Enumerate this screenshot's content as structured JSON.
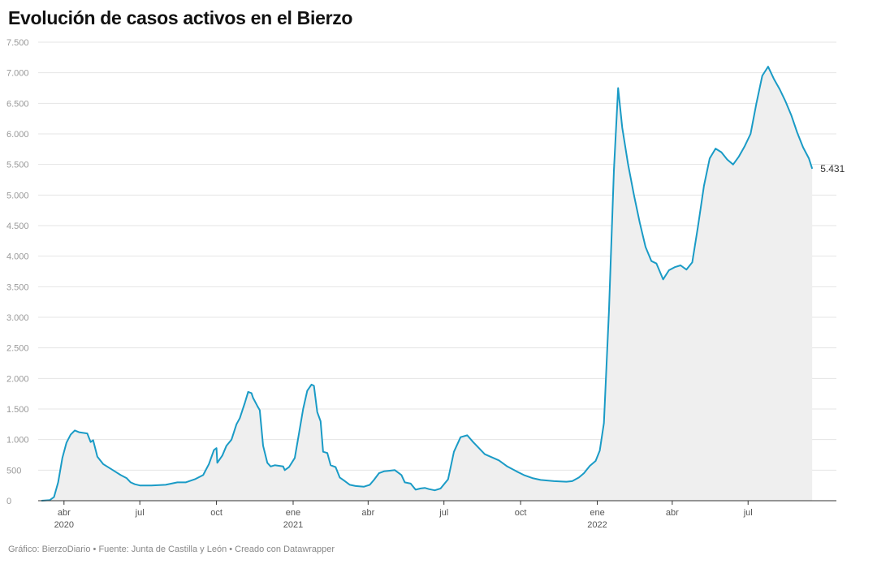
{
  "title": "Evolución de casos activos en el Bierzo",
  "footer": "Gráfico: BierzoDiario • Fuente: Junta de Castilla y León • Creado con Datawrapper",
  "colors": {
    "line": "#1a9bc6",
    "area": "#efefef",
    "grid": "#e4e4e4",
    "axis": "#333333"
  },
  "chart_data": {
    "type": "area",
    "title": "Evolución de casos activos en el Bierzo",
    "xlabel": "",
    "ylabel": "",
    "ylim": [
      0,
      7500
    ],
    "xlim": [
      "2020-03-01",
      "2022-10-15"
    ],
    "grid": true,
    "y_ticks": [
      {
        "value": 0,
        "label": "0"
      },
      {
        "value": 500,
        "label": "500"
      },
      {
        "value": 1000,
        "label": "1.000"
      },
      {
        "value": 1500,
        "label": "1.500"
      },
      {
        "value": 2000,
        "label": "2.000"
      },
      {
        "value": 2500,
        "label": "2.500"
      },
      {
        "value": 3000,
        "label": "3.000"
      },
      {
        "value": 3500,
        "label": "3.500"
      },
      {
        "value": 4000,
        "label": "4.000"
      },
      {
        "value": 4500,
        "label": "4.500"
      },
      {
        "value": 5000,
        "label": "5.000"
      },
      {
        "value": 5500,
        "label": "5.500"
      },
      {
        "value": 6000,
        "label": "6.000"
      },
      {
        "value": 6500,
        "label": "6.500"
      },
      {
        "value": 7000,
        "label": "7.000"
      },
      {
        "value": 7500,
        "label": "7.500"
      }
    ],
    "x_ticks": [
      {
        "date": "2020-04-01",
        "label": "abr",
        "year": "2020"
      },
      {
        "date": "2020-07-01",
        "label": "jul",
        "year": ""
      },
      {
        "date": "2020-10-01",
        "label": "oct",
        "year": ""
      },
      {
        "date": "2021-01-01",
        "label": "ene",
        "year": "2021"
      },
      {
        "date": "2021-04-01",
        "label": "abr",
        "year": ""
      },
      {
        "date": "2021-07-01",
        "label": "jul",
        "year": ""
      },
      {
        "date": "2021-10-01",
        "label": "oct",
        "year": ""
      },
      {
        "date": "2022-01-01",
        "label": "ene",
        "year": "2022"
      },
      {
        "date": "2022-04-01",
        "label": "abr",
        "year": ""
      },
      {
        "date": "2022-07-01",
        "label": "jul",
        "year": ""
      }
    ],
    "end_label": "5.431",
    "series": [
      {
        "points": [
          [
            "2020-03-05",
            0
          ],
          [
            "2020-03-15",
            10
          ],
          [
            "2020-03-20",
            60
          ],
          [
            "2020-03-25",
            300
          ],
          [
            "2020-03-30",
            700
          ],
          [
            "2020-04-04",
            950
          ],
          [
            "2020-04-09",
            1080
          ],
          [
            "2020-04-14",
            1150
          ],
          [
            "2020-04-19",
            1120
          ],
          [
            "2020-04-24",
            1110
          ],
          [
            "2020-04-29",
            1100
          ],
          [
            "2020-05-03",
            960
          ],
          [
            "2020-05-06",
            990
          ],
          [
            "2020-05-11",
            720
          ],
          [
            "2020-05-18",
            600
          ],
          [
            "2020-05-25",
            540
          ],
          [
            "2020-06-01",
            480
          ],
          [
            "2020-06-08",
            420
          ],
          [
            "2020-06-15",
            370
          ],
          [
            "2020-06-20",
            300
          ],
          [
            "2020-06-25",
            270
          ],
          [
            "2020-07-01",
            250
          ],
          [
            "2020-07-15",
            250
          ],
          [
            "2020-08-01",
            260
          ],
          [
            "2020-08-15",
            300
          ],
          [
            "2020-08-25",
            300
          ],
          [
            "2020-09-05",
            350
          ],
          [
            "2020-09-15",
            420
          ],
          [
            "2020-09-22",
            600
          ],
          [
            "2020-09-28",
            830
          ],
          [
            "2020-10-01",
            860
          ],
          [
            "2020-10-02",
            620
          ],
          [
            "2020-10-08",
            740
          ],
          [
            "2020-10-13",
            900
          ],
          [
            "2020-10-19",
            1000
          ],
          [
            "2020-10-25",
            1250
          ],
          [
            "2020-10-29",
            1350
          ],
          [
            "2020-11-04",
            1600
          ],
          [
            "2020-11-08",
            1780
          ],
          [
            "2020-11-12",
            1760
          ],
          [
            "2020-11-14",
            1680
          ],
          [
            "2020-11-19",
            1550
          ],
          [
            "2020-11-22",
            1480
          ],
          [
            "2020-11-26",
            900
          ],
          [
            "2020-12-01",
            620
          ],
          [
            "2020-12-05",
            560
          ],
          [
            "2020-12-10",
            580
          ],
          [
            "2020-12-20",
            560
          ],
          [
            "2020-12-22",
            500
          ],
          [
            "2020-12-27",
            550
          ],
          [
            "2021-01-03",
            700
          ],
          [
            "2021-01-08",
            1100
          ],
          [
            "2021-01-13",
            1500
          ],
          [
            "2021-01-18",
            1800
          ],
          [
            "2021-01-23",
            1900
          ],
          [
            "2021-01-26",
            1880
          ],
          [
            "2021-01-30",
            1450
          ],
          [
            "2021-02-03",
            1300
          ],
          [
            "2021-02-06",
            800
          ],
          [
            "2021-02-11",
            780
          ],
          [
            "2021-02-15",
            580
          ],
          [
            "2021-02-21",
            550
          ],
          [
            "2021-02-26",
            380
          ],
          [
            "2021-03-03",
            330
          ],
          [
            "2021-03-10",
            260
          ],
          [
            "2021-03-17",
            240
          ],
          [
            "2021-03-27",
            230
          ],
          [
            "2021-04-03",
            260
          ],
          [
            "2021-04-08",
            340
          ],
          [
            "2021-04-14",
            450
          ],
          [
            "2021-04-20",
            480
          ],
          [
            "2021-04-26",
            490
          ],
          [
            "2021-05-03",
            500
          ],
          [
            "2021-05-08",
            450
          ],
          [
            "2021-05-11",
            420
          ],
          [
            "2021-05-15",
            300
          ],
          [
            "2021-05-22",
            280
          ],
          [
            "2021-05-28",
            180
          ],
          [
            "2021-06-03",
            200
          ],
          [
            "2021-06-08",
            210
          ],
          [
            "2021-06-13",
            190
          ],
          [
            "2021-06-20",
            170
          ],
          [
            "2021-06-27",
            200
          ],
          [
            "2021-07-06",
            350
          ],
          [
            "2021-07-13",
            800
          ],
          [
            "2021-07-21",
            1040
          ],
          [
            "2021-07-29",
            1070
          ],
          [
            "2021-08-05",
            960
          ],
          [
            "2021-08-19",
            760
          ],
          [
            "2021-09-05",
            660
          ],
          [
            "2021-09-15",
            560
          ],
          [
            "2021-09-26",
            480
          ],
          [
            "2021-10-05",
            420
          ],
          [
            "2021-10-15",
            370
          ],
          [
            "2021-10-25",
            340
          ],
          [
            "2021-11-10",
            320
          ],
          [
            "2021-11-25",
            310
          ],
          [
            "2021-12-02",
            320
          ],
          [
            "2021-12-10",
            380
          ],
          [
            "2021-12-16",
            450
          ],
          [
            "2021-12-23",
            570
          ],
          [
            "2021-12-30",
            650
          ],
          [
            "2022-01-04",
            820
          ],
          [
            "2022-01-09",
            1270
          ],
          [
            "2022-01-15",
            3100
          ],
          [
            "2022-01-21",
            5400
          ],
          [
            "2022-01-26",
            6750
          ],
          [
            "2022-01-31",
            6100
          ],
          [
            "2022-02-07",
            5500
          ],
          [
            "2022-02-14",
            5000
          ],
          [
            "2022-02-21",
            4550
          ],
          [
            "2022-02-28",
            4150
          ],
          [
            "2022-03-07",
            3920
          ],
          [
            "2022-03-13",
            3880
          ],
          [
            "2022-03-21",
            3620
          ],
          [
            "2022-03-28",
            3770
          ],
          [
            "2022-04-04",
            3820
          ],
          [
            "2022-04-11",
            3850
          ],
          [
            "2022-04-18",
            3780
          ],
          [
            "2022-04-25",
            3900
          ],
          [
            "2022-05-02",
            4500
          ],
          [
            "2022-05-09",
            5150
          ],
          [
            "2022-05-16",
            5600
          ],
          [
            "2022-05-23",
            5760
          ],
          [
            "2022-05-30",
            5700
          ],
          [
            "2022-06-06",
            5580
          ],
          [
            "2022-06-13",
            5500
          ],
          [
            "2022-06-20",
            5630
          ],
          [
            "2022-06-27",
            5800
          ],
          [
            "2022-07-04",
            6000
          ],
          [
            "2022-07-11",
            6500
          ],
          [
            "2022-07-18",
            6950
          ],
          [
            "2022-07-25",
            7100
          ],
          [
            "2022-08-01",
            6900
          ],
          [
            "2022-08-08",
            6730
          ],
          [
            "2022-08-15",
            6530
          ],
          [
            "2022-08-22",
            6300
          ],
          [
            "2022-08-29",
            6020
          ],
          [
            "2022-09-05",
            5780
          ],
          [
            "2022-09-12",
            5600
          ],
          [
            "2022-09-16",
            5431
          ]
        ]
      }
    ]
  }
}
